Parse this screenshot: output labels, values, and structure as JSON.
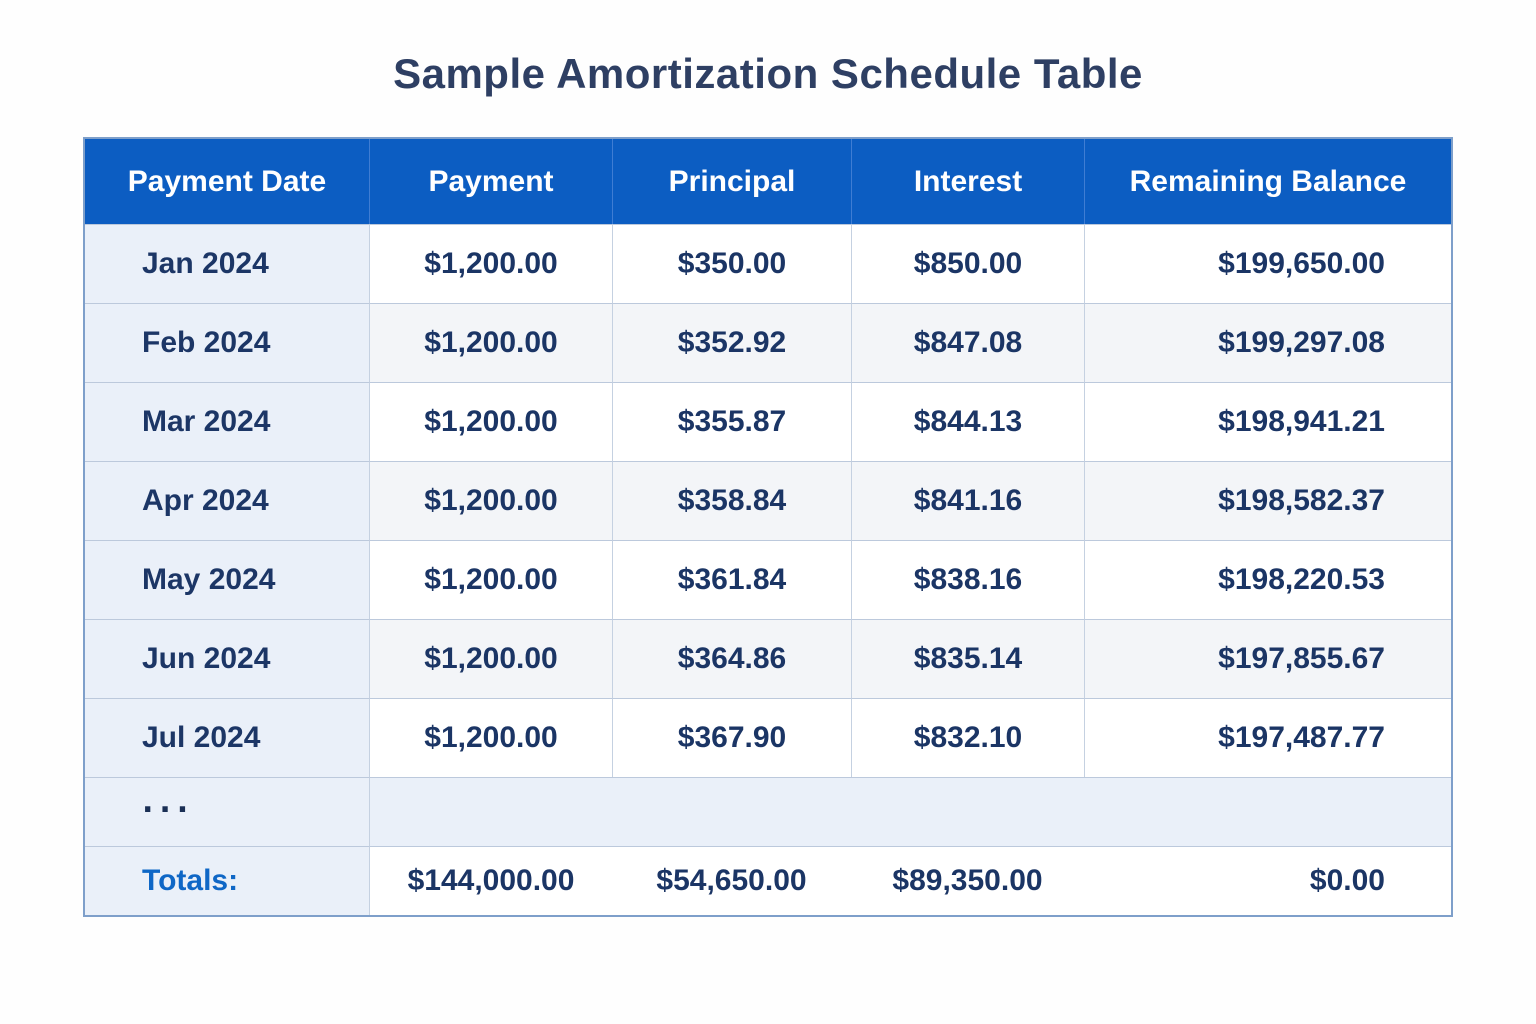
{
  "title": "Sample Amortization Schedule Table",
  "colors": {
    "header_bg": "#0c5dc2",
    "header_text": "#ffffff",
    "body_text": "#1b3565",
    "totals_label": "#0f67c6",
    "first_col_bg": "#eaf0f9",
    "alt_row_bg": "#f3f5f8",
    "outer_border": "#7e9fca",
    "row_border": "#bcc9dc",
    "title_text": "#2e3f63"
  },
  "chart_data": {
    "type": "table",
    "title": "Sample Amortization Schedule Table",
    "columns": [
      "Payment Date",
      "Payment",
      "Principal",
      "Interest",
      "Remaining Balance"
    ],
    "rows": [
      [
        "Jan 2024",
        "$1,200.00",
        "$350.00",
        "$850.00",
        "$199,650.00"
      ],
      [
        "Feb 2024",
        "$1,200.00",
        "$352.92",
        "$847.08",
        "$199,297.08"
      ],
      [
        "Mar 2024",
        "$1,200.00",
        "$355.87",
        "$844.13",
        "$198,941.21"
      ],
      [
        "Apr 2024",
        "$1,200.00",
        "$358.84",
        "$841.16",
        "$198,582.37"
      ],
      [
        "May 2024",
        "$1,200.00",
        "$361.84",
        "$838.16",
        "$198,220.53"
      ],
      [
        "Jun 2024",
        "$1,200.00",
        "$364.86",
        "$835.14",
        "$197,855.67"
      ],
      [
        "Jul 2024",
        "$1,200.00",
        "$367.90",
        "$832.10",
        "$197,487.77"
      ]
    ],
    "ellipsis_row": "...",
    "totals_row": [
      "Totals:",
      "$144,000.00",
      "$54,650.00",
      "$89,350.00",
      "$0.00"
    ]
  }
}
